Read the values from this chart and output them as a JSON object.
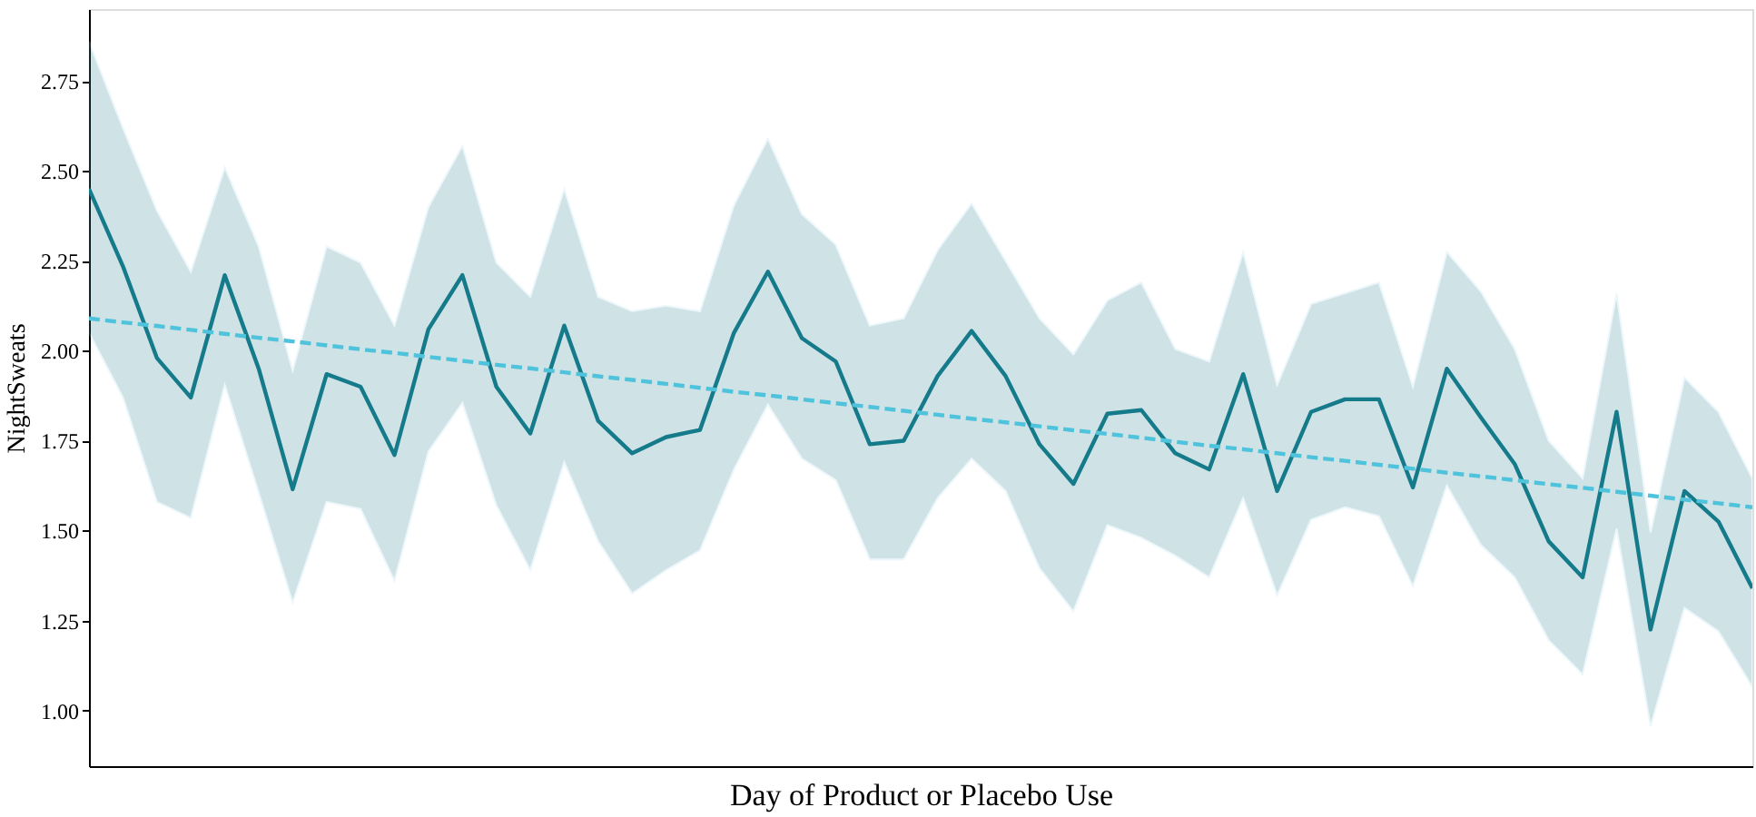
{
  "chart_data": {
    "type": "line",
    "xlabel": "Day of Product or Placebo Use",
    "ylabel": "NightSweats",
    "categories": [
      null,
      null,
      null,
      null,
      null,
      null,
      null,
      null,
      null,
      null,
      null,
      null,
      null,
      null,
      null,
      null,
      null,
      null,
      null,
      null,
      null,
      null,
      null,
      null,
      null,
      null,
      null,
      null,
      null,
      null,
      null,
      null,
      null,
      null,
      null,
      null,
      null,
      null,
      null,
      null,
      null,
      null,
      null,
      null,
      null,
      null,
      null,
      null,
      null,
      null
    ],
    "series": [
      {
        "color": "#157a8a",
        "line_style": "solid",
        "values": [
          2.45,
          2.235,
          1.98,
          1.87,
          2.21,
          1.95,
          1.615,
          1.935,
          1.9,
          1.71,
          2.06,
          2.21,
          1.9,
          1.77,
          2.07,
          1.805,
          1.715,
          1.76,
          1.78,
          2.05,
          2.22,
          2.035,
          1.97,
          1.74,
          1.75,
          1.93,
          2.055,
          1.93,
          1.74,
          1.63,
          1.825,
          1.835,
          1.715,
          1.67,
          1.935,
          1.61,
          1.83,
          1.865,
          1.865,
          1.62,
          1.95,
          1.815,
          1.685,
          1.47,
          1.37,
          1.83,
          1.225,
          1.61,
          1.525,
          1.34
        ],
        "upper": [
          2.86,
          2.62,
          2.39,
          2.22,
          2.51,
          2.29,
          1.945,
          2.29,
          2.245,
          2.07,
          2.4,
          2.57,
          2.245,
          2.15,
          2.45,
          2.15,
          2.11,
          2.125,
          2.11,
          2.405,
          2.59,
          2.38,
          2.295,
          2.07,
          2.09,
          2.28,
          2.41,
          2.25,
          2.09,
          1.99,
          2.14,
          2.19,
          2.005,
          1.97,
          2.275,
          1.905,
          2.13,
          2.16,
          2.19,
          1.9,
          2.275,
          2.165,
          2.005,
          1.75,
          1.645,
          2.16,
          1.495,
          1.925,
          1.83,
          1.645
        ],
        "lower": [
          2.05,
          1.87,
          1.58,
          1.535,
          1.905,
          1.605,
          1.3,
          1.58,
          1.56,
          1.36,
          1.72,
          1.855,
          1.57,
          1.39,
          1.69,
          1.47,
          1.325,
          1.39,
          1.445,
          1.67,
          1.85,
          1.7,
          1.64,
          1.42,
          1.42,
          1.59,
          1.7,
          1.61,
          1.395,
          1.275,
          1.515,
          1.48,
          1.43,
          1.37,
          1.59,
          1.32,
          1.53,
          1.565,
          1.54,
          1.345,
          1.625,
          1.46,
          1.37,
          1.195,
          1.1,
          1.505,
          0.955,
          1.285,
          1.22,
          1.065
        ]
      },
      {
        "type": "line",
        "color": "#4fc3db",
        "line_style": "dashed",
        "values": [
          2.09,
          2.079,
          2.069,
          2.058,
          2.047,
          2.036,
          2.026,
          2.015,
          2.004,
          1.994,
          1.983,
          1.972,
          1.961,
          1.951,
          1.94,
          1.929,
          1.919,
          1.908,
          1.897,
          1.886,
          1.876,
          1.865,
          1.854,
          1.844,
          1.833,
          1.822,
          1.811,
          1.801,
          1.79,
          1.779,
          1.769,
          1.758,
          1.747,
          1.736,
          1.726,
          1.715,
          1.704,
          1.694,
          1.683,
          1.672,
          1.661,
          1.651,
          1.64,
          1.629,
          1.619,
          1.608,
          1.597,
          1.586,
          1.576,
          1.565
        ]
      }
    ],
    "ylim": [
      0.845,
      2.95
    ],
    "yticks": [
      {
        "value": 1,
        "label": "1.00"
      },
      {
        "value": 1.25,
        "label": "1.25"
      },
      {
        "value": 1.5,
        "label": "1.50"
      },
      {
        "value": 1.75,
        "label": "1.75"
      },
      {
        "value": 2,
        "label": "2.00"
      },
      {
        "value": 2.25,
        "label": "2.25"
      },
      {
        "value": 2.5,
        "label": "2.50"
      },
      {
        "value": 2.75,
        "label": "2.75"
      }
    ],
    "tick_labels": "y",
    "grid": false,
    "marker": "none"
  }
}
